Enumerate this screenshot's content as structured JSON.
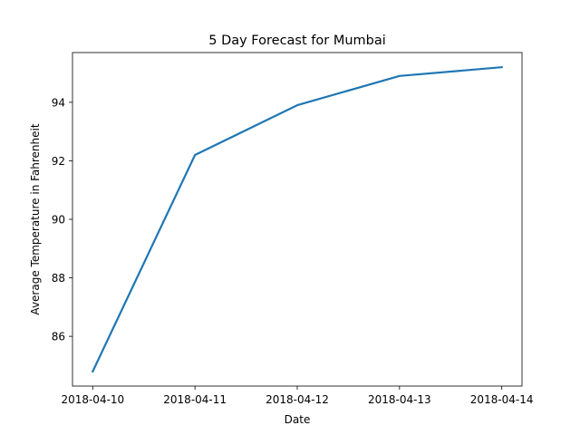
{
  "chart_data": {
    "type": "line",
    "title": "5 Day Forecast for Mumbai",
    "xlabel": "Date",
    "ylabel": "Average Temperature in Fahrenheit",
    "x": [
      "2018-04-10",
      "2018-04-11",
      "2018-04-12",
      "2018-04-13",
      "2018-04-14"
    ],
    "series": [
      {
        "values": [
          84.8,
          92.2,
          93.9,
          94.9,
          95.2
        ],
        "color": "#1f77b4"
      }
    ],
    "ylim": [
      84.3,
      95.7
    ],
    "yticks": [
      86,
      88,
      90,
      92,
      94
    ],
    "grid": false,
    "legend": "none"
  }
}
